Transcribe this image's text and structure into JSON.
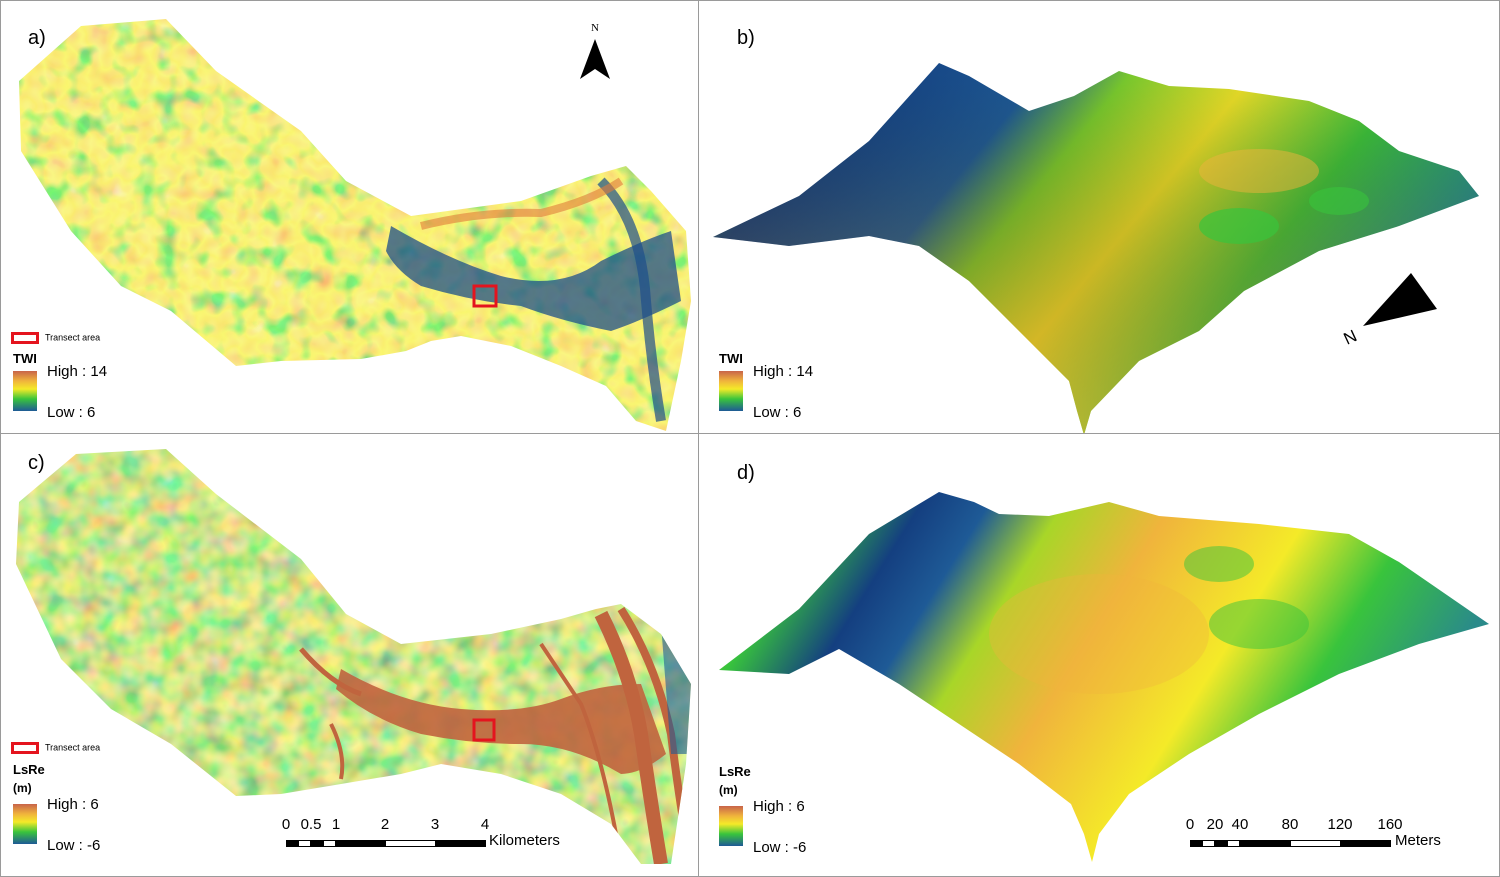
{
  "panels": {
    "a": {
      "label": "a)",
      "north": "N",
      "legend": {
        "title": "TWI",
        "high": "High : 14",
        "low": "Low : 6"
      },
      "transect": "Transect area"
    },
    "b": {
      "label": "b)",
      "north": "N",
      "legend": {
        "title": "TWI",
        "high": "High : 14",
        "low": "Low : 6"
      }
    },
    "c": {
      "label": "c)",
      "legend": {
        "title": "LsRe",
        "unit": "(m)",
        "high": "High : 6",
        "low": "Low : -6"
      },
      "transect": "Transect area",
      "scalebar": {
        "ticks": [
          "0",
          "0.5",
          "1",
          "2",
          "3",
          "4"
        ],
        "units": "Kilometers"
      }
    },
    "d": {
      "label": "d)",
      "legend": {
        "title": "LsRe",
        "unit": "(m)",
        "high": "High : 6",
        "low": "Low : -6"
      },
      "scalebar": {
        "ticks": [
          "0",
          "20",
          "40",
          "80",
          "120",
          "160"
        ],
        "units": "Meters"
      }
    }
  },
  "colors": {
    "high": "#c8644a",
    "mid_high": "#f0b43c",
    "mid": "#f4ea28",
    "mid_low": "#39c43c",
    "low": "#1e5a96",
    "transect_box": "#e4141e"
  }
}
